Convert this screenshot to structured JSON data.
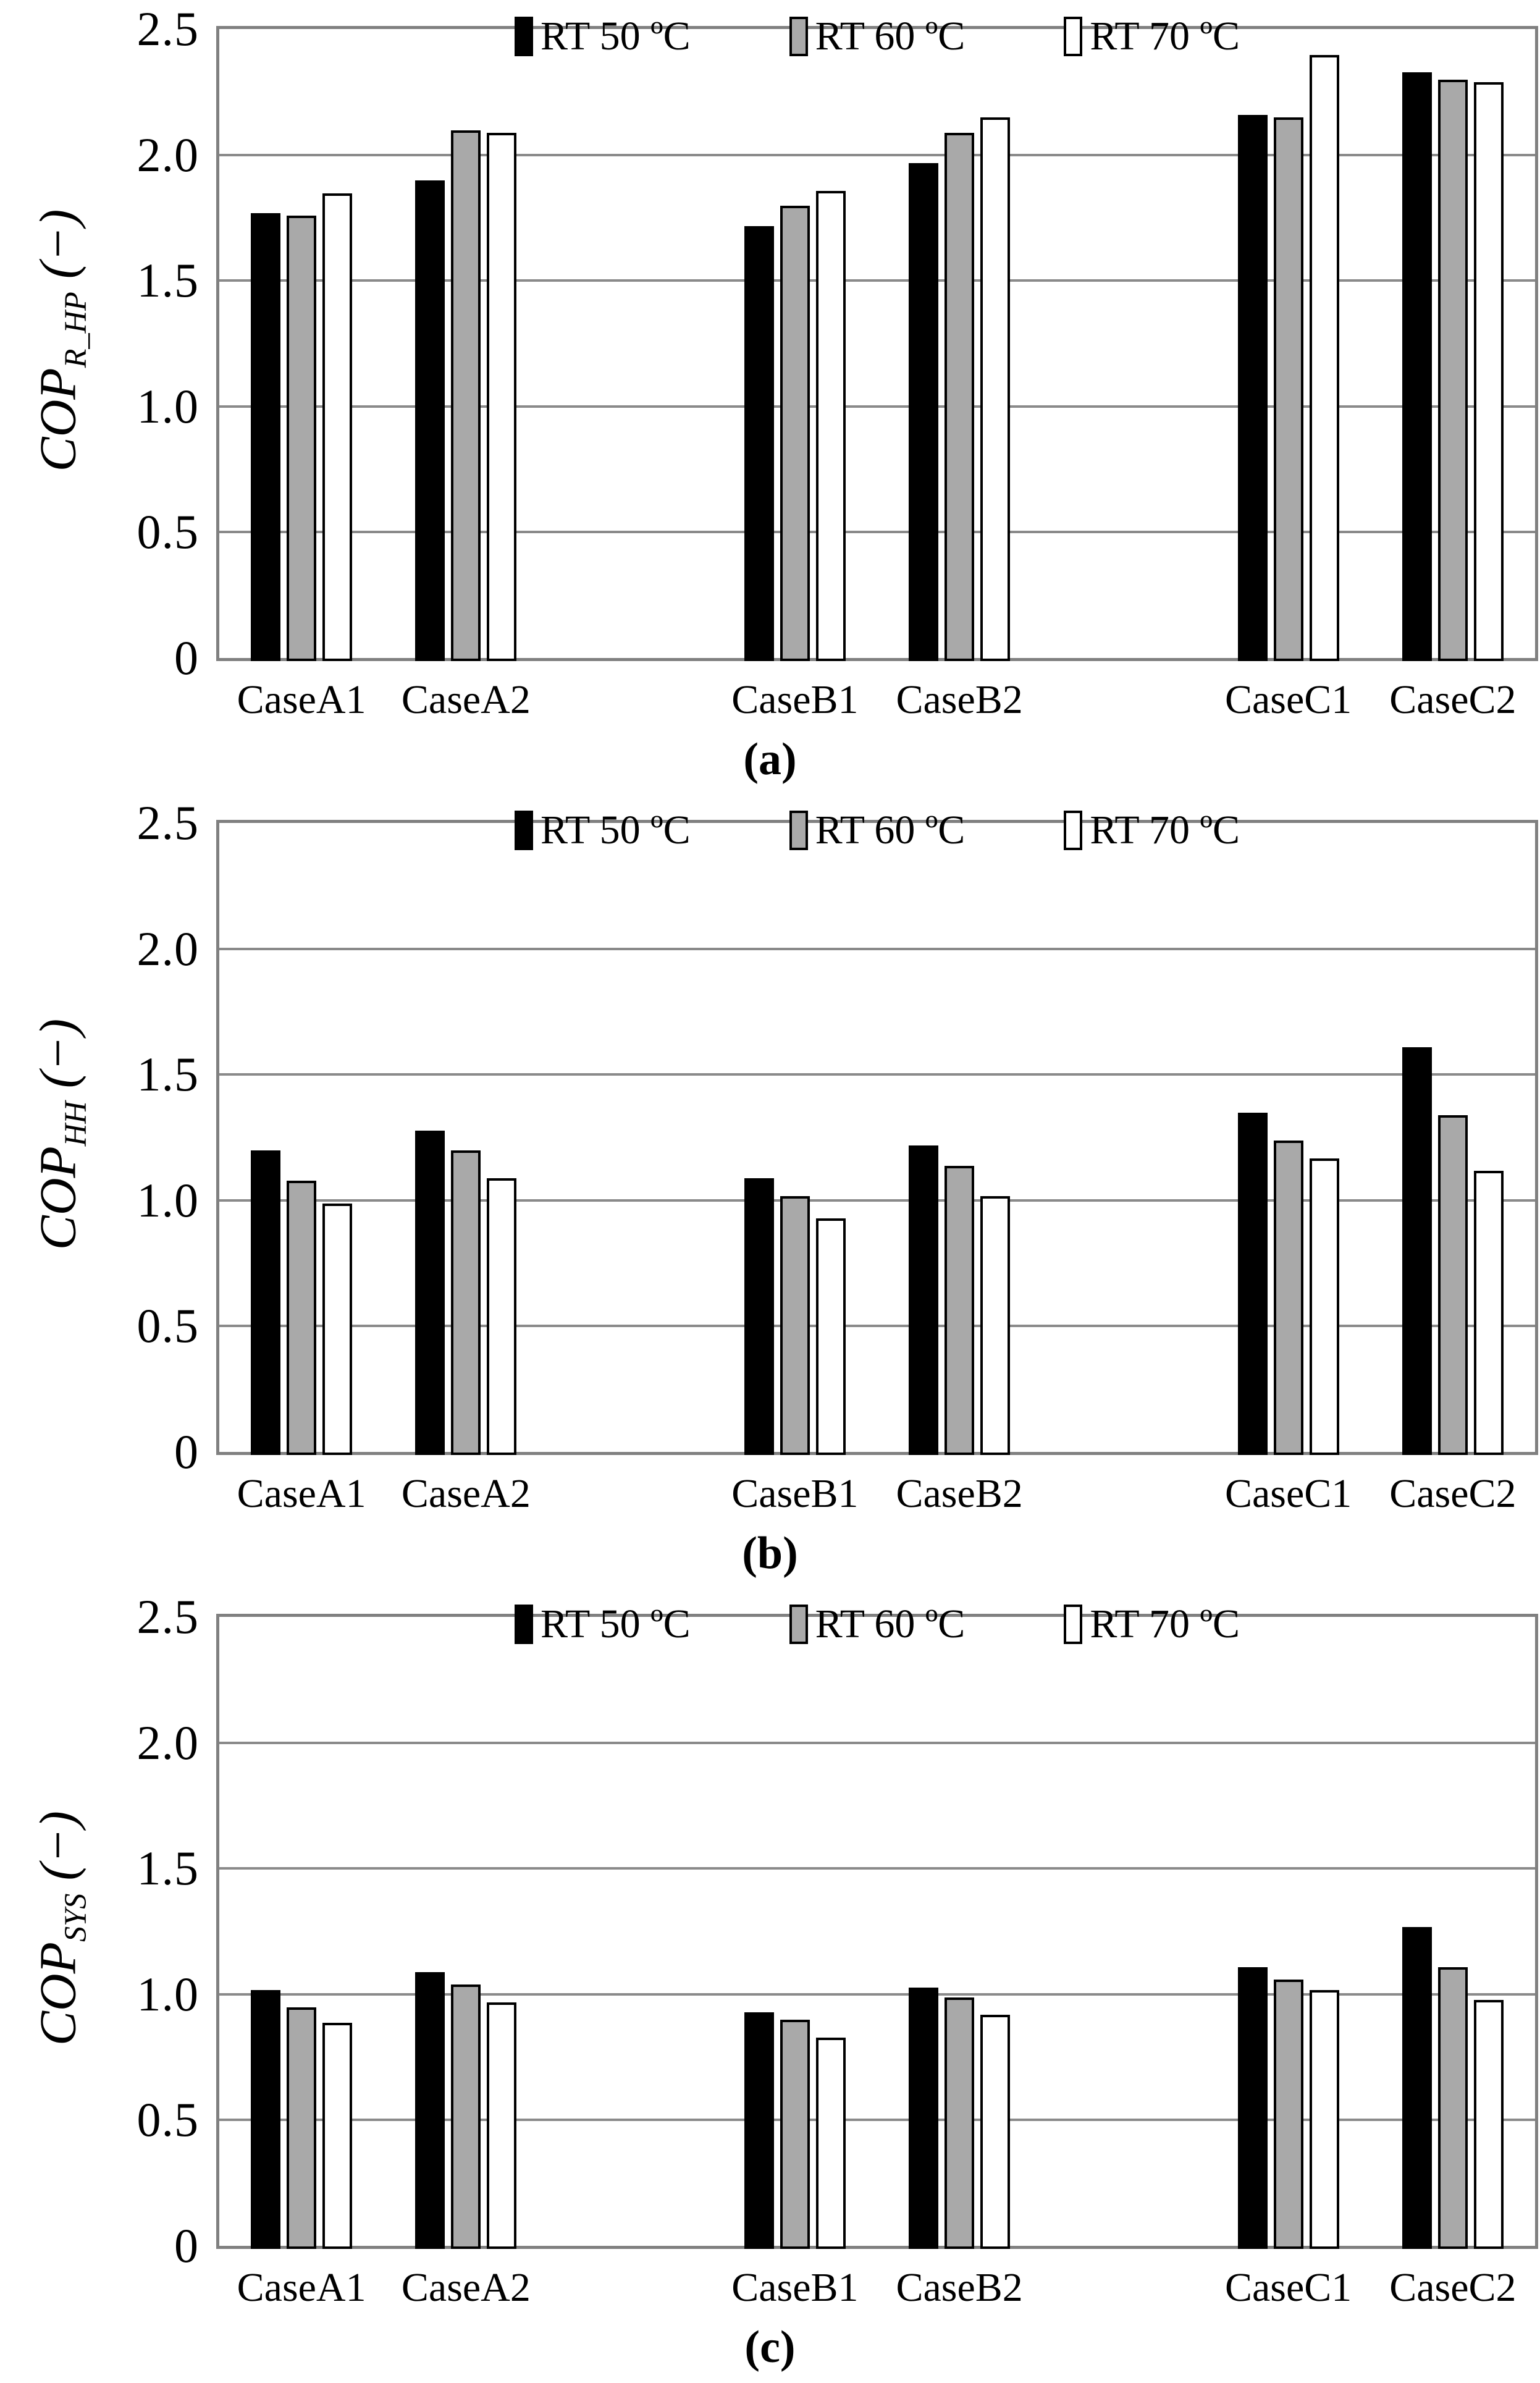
{
  "page": {
    "background": "#ffffff"
  },
  "colors": {
    "bar_black": "#000000",
    "bar_gray": "#a9a9a9",
    "bar_white": "#ffffff",
    "gridline": "#8a8a8a",
    "plot_border": "#808080"
  },
  "legend": {
    "position": "top-center",
    "items": [
      {
        "label": "RT 50 ºC",
        "fill": "#000000"
      },
      {
        "label": "RT 60 ºC",
        "fill": "#a9a9a9"
      },
      {
        "label": "RT 70 ºC",
        "fill": "#ffffff"
      }
    ]
  },
  "axis": {
    "yticks": [
      {
        "label": "2.5",
        "value": 2.5
      },
      {
        "label": "2.0",
        "value": 2.0
      },
      {
        "label": "1.5",
        "value": 1.5
      },
      {
        "label": "1.0",
        "value": 1.0
      },
      {
        "label": "0.5",
        "value": 0.5
      },
      {
        "label": "0",
        "value": 0
      }
    ]
  },
  "chart_data": [
    {
      "id": "a",
      "type": "bar",
      "caption": "(a)",
      "ylabel": {
        "base": "COP",
        "sub": "R_HP",
        "suffix": " (−)"
      },
      "ylim": [
        0,
        2.5
      ],
      "grid": true,
      "legend_position": "top-center",
      "categories": [
        "CaseA1",
        "CaseA2",
        "CaseB1",
        "CaseB2",
        "CaseC1",
        "CaseC2"
      ],
      "series": [
        {
          "name": "RT 50 ºC",
          "values": [
            1.78,
            1.91,
            1.73,
            1.98,
            2.17,
            2.34
          ]
        },
        {
          "name": "RT 60 ºC",
          "values": [
            1.77,
            2.11,
            1.81,
            2.1,
            2.16,
            2.31
          ]
        },
        {
          "name": "RT 70 ºC",
          "values": [
            1.86,
            2.1,
            1.87,
            2.16,
            2.41,
            2.3
          ]
        }
      ]
    },
    {
      "id": "b",
      "type": "bar",
      "caption": "(b)",
      "ylabel": {
        "base": "COP",
        "sub": "HH",
        "suffix": " (−)"
      },
      "ylim": [
        0,
        2.5
      ],
      "grid": true,
      "legend_position": "top-center",
      "categories": [
        "CaseA1",
        "CaseA2",
        "CaseB1",
        "CaseB2",
        "CaseC1",
        "CaseC2"
      ],
      "series": [
        {
          "name": "RT 50 ºC",
          "values": [
            1.21,
            1.29,
            1.1,
            1.23,
            1.36,
            1.62
          ]
        },
        {
          "name": "RT 60 ºC",
          "values": [
            1.09,
            1.21,
            1.03,
            1.15,
            1.25,
            1.35
          ]
        },
        {
          "name": "RT 70 ºC",
          "values": [
            1.0,
            1.1,
            0.94,
            1.03,
            1.18,
            1.13
          ]
        }
      ]
    },
    {
      "id": "c",
      "type": "bar",
      "caption": "(c)",
      "ylabel": {
        "base": "COP",
        "sub": "SYS",
        "suffix": " (−)"
      },
      "ylim": [
        0,
        2.5
      ],
      "grid": true,
      "legend_position": "top-center",
      "categories": [
        "CaseA1",
        "CaseA2",
        "CaseB1",
        "CaseB2",
        "CaseC1",
        "CaseC2"
      ],
      "series": [
        {
          "name": "RT 50 ºC",
          "values": [
            1.03,
            1.1,
            0.94,
            1.04,
            1.12,
            1.28
          ]
        },
        {
          "name": "RT 60 ºC",
          "values": [
            0.96,
            1.05,
            0.91,
            1.0,
            1.07,
            1.12
          ]
        },
        {
          "name": "RT 70 ºC",
          "values": [
            0.9,
            0.98,
            0.84,
            0.93,
            1.03,
            0.99
          ]
        }
      ]
    }
  ]
}
